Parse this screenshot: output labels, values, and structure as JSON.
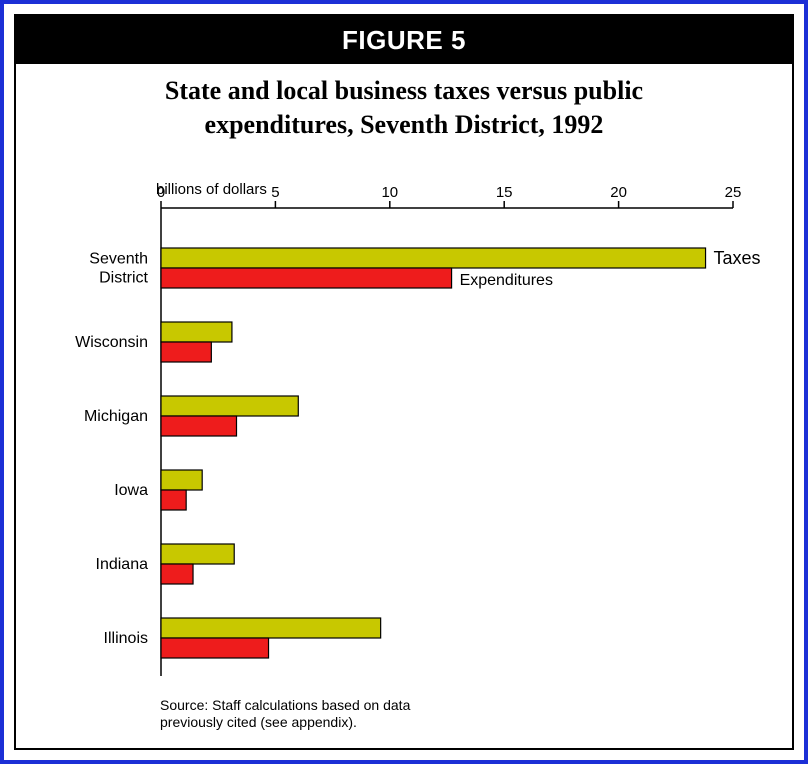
{
  "figure_label": "FIGURE 5",
  "chart_data": {
    "type": "bar",
    "orientation": "horizontal",
    "title_lines": [
      "State and local business taxes versus public",
      "expenditures, Seventh District, 1992"
    ],
    "xlabel": "billions of dollars",
    "xlim": [
      0,
      25
    ],
    "xticks": [
      0,
      5,
      10,
      15,
      20,
      25
    ],
    "categories": [
      [
        "Seventh",
        "District"
      ],
      [
        "Wisconsin"
      ],
      [
        "Michigan"
      ],
      [
        "Iowa"
      ],
      [
        "Indiana"
      ],
      [
        "Illinois"
      ]
    ],
    "series": [
      {
        "name": "Taxes",
        "color": "#c8c800",
        "values": [
          23.8,
          3.1,
          6.0,
          1.8,
          3.2,
          9.6
        ]
      },
      {
        "name": "Expenditures",
        "color": "#ee1c1c",
        "values": [
          12.7,
          2.2,
          3.3,
          1.1,
          1.4,
          4.7
        ]
      }
    ],
    "legend": "inline labels at ends of Seventh District bars",
    "grid": false
  },
  "source_lines": [
    "Source: Staff calculations based on data",
    "previously cited (see appendix)."
  ]
}
